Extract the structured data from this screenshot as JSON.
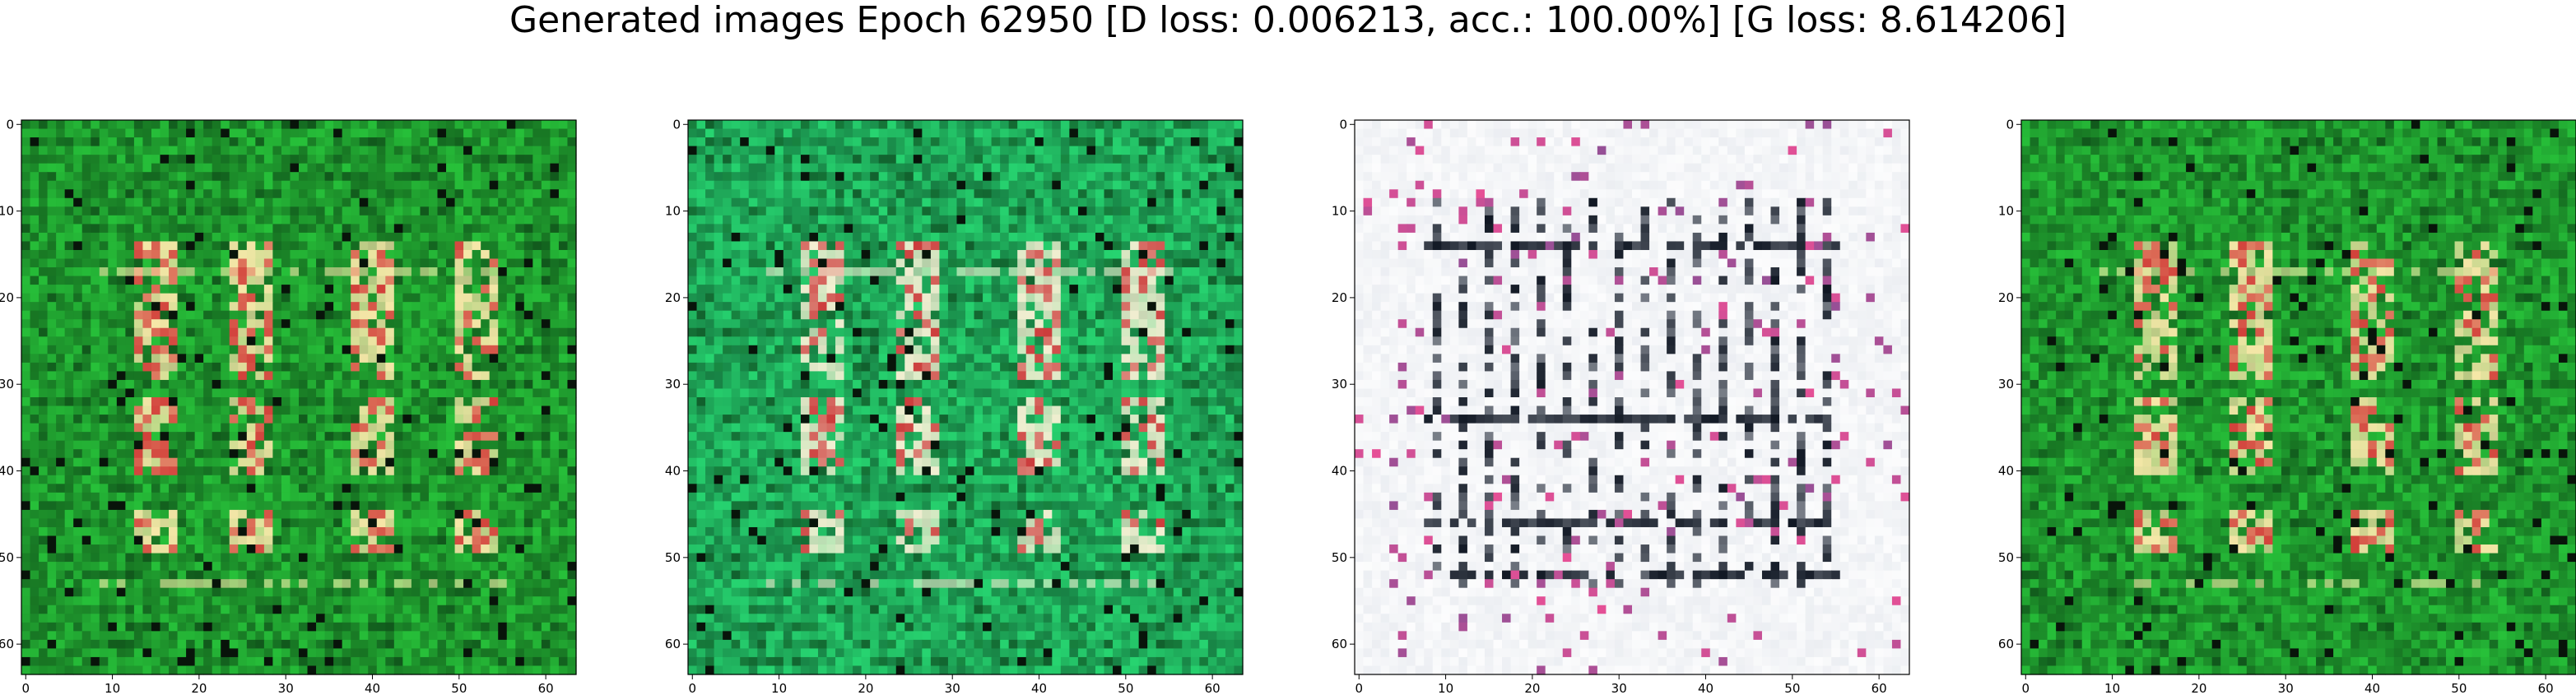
{
  "figure": {
    "suptitle": "Generated images Epoch 62950 [D loss: 0.006213, acc.: 100.00%] [G loss: 8.614206]"
  },
  "panels": [
    {
      "name": "generated-image-1",
      "description_colors": {
        "background": "#1f9a2e",
        "highlight": "#f6e7a8",
        "accent": "#d2403a"
      },
      "xticks": [
        "0",
        "10",
        "20",
        "30",
        "40",
        "50",
        "60"
      ],
      "yticks": [
        "0",
        "10",
        "20",
        "30",
        "40",
        "50",
        "60"
      ]
    },
    {
      "name": "generated-image-2",
      "description_colors": {
        "background": "#1faa5a",
        "highlight": "#f3efd2",
        "accent": "#cc3b3b"
      },
      "xticks": [
        "0",
        "10",
        "20",
        "30",
        "40",
        "50",
        "60"
      ],
      "yticks": [
        "0",
        "10",
        "20",
        "30",
        "40",
        "50",
        "60"
      ]
    },
    {
      "name": "generated-image-3",
      "description_colors": {
        "background": "#dfe3ea",
        "highlight": "#ffffff",
        "accent": "#111824"
      },
      "xticks": [
        "0",
        "10",
        "20",
        "30",
        "40",
        "50",
        "60"
      ],
      "yticks": [
        "0",
        "10",
        "20",
        "30",
        "40",
        "50",
        "60"
      ]
    },
    {
      "name": "generated-image-4",
      "description_colors": {
        "background": "#1f9a2e",
        "highlight": "#f6e7a8",
        "accent": "#d2403a"
      },
      "xticks": [
        "0",
        "10",
        "20",
        "30",
        "40",
        "50",
        "60"
      ],
      "yticks": [
        "0",
        "10",
        "20",
        "30",
        "40",
        "50",
        "60"
      ]
    }
  ],
  "image_grid_size": 64
}
